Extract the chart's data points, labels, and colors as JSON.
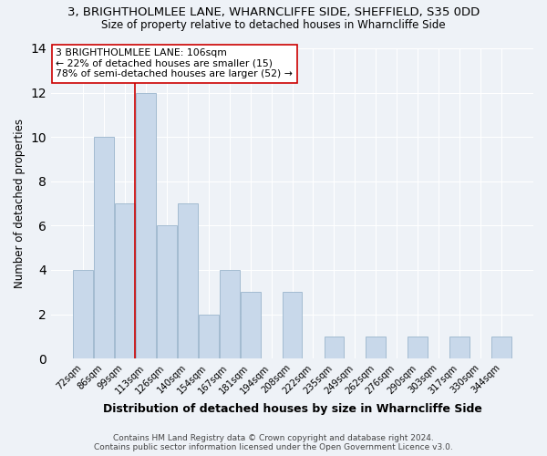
{
  "title_line1": "3, BRIGHTHOLMLEE LANE, WHARNCLIFFE SIDE, SHEFFIELD, S35 0DD",
  "title_line2": "Size of property relative to detached houses in Wharncliffe Side",
  "xlabel": "Distribution of detached houses by size in Wharncliffe Side",
  "ylabel": "Number of detached properties",
  "bin_labels": [
    "72sqm",
    "86sqm",
    "99sqm",
    "113sqm",
    "126sqm",
    "140sqm",
    "154sqm",
    "167sqm",
    "181sqm",
    "194sqm",
    "208sqm",
    "222sqm",
    "235sqm",
    "249sqm",
    "262sqm",
    "276sqm",
    "290sqm",
    "303sqm",
    "317sqm",
    "330sqm",
    "344sqm"
  ],
  "bar_heights": [
    4,
    10,
    7,
    12,
    6,
    7,
    2,
    4,
    3,
    0,
    3,
    0,
    1,
    0,
    1,
    0,
    1,
    0,
    1,
    0,
    1
  ],
  "bar_color": "#c8d8ea",
  "bar_edge_color": "#9ab5cc",
  "vline_color": "#cc0000",
  "annotation_text": "3 BRIGHTHOLMLEE LANE: 106sqm\n← 22% of detached houses are smaller (15)\n78% of semi-detached houses are larger (52) →",
  "annotation_box_edgecolor": "#cc0000",
  "annotation_box_facecolor": "#ffffff",
  "ylim": [
    0,
    14
  ],
  "yticks": [
    0,
    2,
    4,
    6,
    8,
    10,
    12,
    14
  ],
  "footer": "Contains HM Land Registry data © Crown copyright and database right 2024.\nContains public sector information licensed under the Open Government Licence v3.0.",
  "bg_color": "#eef2f7"
}
